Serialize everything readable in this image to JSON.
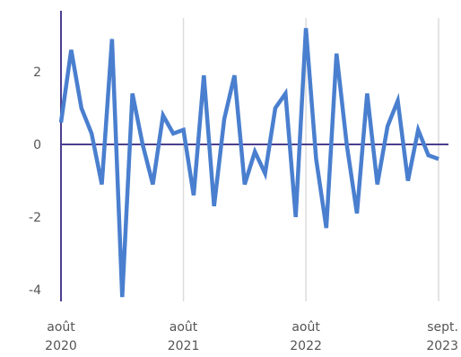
{
  "chart_data": {
    "type": "line",
    "title": "",
    "xlabel": "",
    "ylabel": "",
    "ylim": [
      -4.3,
      3.6
    ],
    "y_ticks": [
      2,
      0,
      -2,
      -4
    ],
    "y_tick_labels": [
      "2",
      "0",
      "-2",
      "-4"
    ],
    "x_ticks": [
      {
        "index": 0,
        "line1": "août",
        "line2": "2020"
      },
      {
        "index": 12,
        "line1": "août",
        "line2": "2021"
      },
      {
        "index": 24,
        "line1": "août",
        "line2": "2022"
      },
      {
        "index": 37,
        "line1": "sept.",
        "line2": "2023"
      }
    ],
    "grid": "vertical",
    "series": [
      {
        "x": [
          "2020-08",
          "2020-09",
          "2020-10",
          "2020-11",
          "2020-12",
          "2021-01",
          "2021-02",
          "2021-03",
          "2021-04",
          "2021-05",
          "2021-06",
          "2021-07",
          "2021-08",
          "2021-09",
          "2021-10",
          "2021-11",
          "2021-12",
          "2022-01",
          "2022-02",
          "2022-03",
          "2022-04",
          "2022-05",
          "2022-06",
          "2022-07",
          "2022-08",
          "2022-09",
          "2022-10",
          "2022-11",
          "2022-12",
          "2023-01",
          "2023-02",
          "2023-03",
          "2023-04",
          "2023-05",
          "2023-06",
          "2023-07",
          "2023-08",
          "2023-09"
        ],
        "values": [
          0.6,
          2.6,
          1.0,
          0.3,
          -1.1,
          2.9,
          -4.2,
          1.4,
          0.0,
          -1.1,
          0.8,
          0.3,
          0.4,
          -1.4,
          1.9,
          -1.7,
          0.7,
          1.9,
          -1.1,
          -0.2,
          -0.8,
          1.0,
          1.4,
          -2.0,
          3.2,
          -0.4,
          -2.3,
          2.5,
          0.0,
          -1.9,
          1.4,
          -1.1,
          0.5,
          1.2,
          -1.0,
          0.4,
          -0.3,
          -0.4
        ]
      }
    ],
    "colors": {
      "line": "#4a7fcf",
      "zero_line": "#4b3f8e",
      "y_axis": "#4b3f8e",
      "grid": "#dcdcdc"
    }
  }
}
